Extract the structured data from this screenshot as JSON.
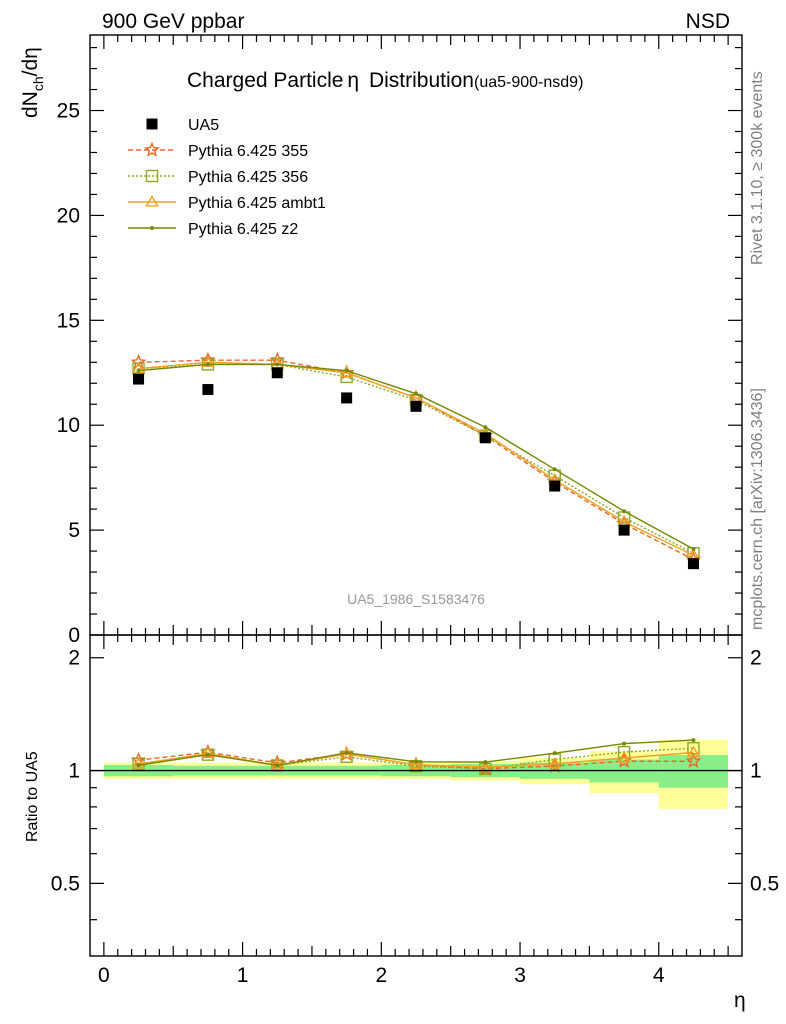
{
  "header": {
    "left": "900 GeV ppbar",
    "right": "NSD",
    "title_main": "Charged Particle",
    "title_eta": "η",
    "title_rest": " Distribution",
    "title_id": "(ua5-900-nsd9)",
    "side_top": "Rivet 3.1.10, ≥ 300k events",
    "side_bottom": "mcplots.cern.ch [arXiv:1306.3436]",
    "analysis": "UA5_1986_S1583476",
    "ratio_ylabel": "Ratio to UA5",
    "xlabel": "η"
  },
  "chart_data": {
    "type": "scatter",
    "x": [
      0.25,
      0.75,
      1.25,
      1.75,
      2.25,
      2.75,
      3.25,
      3.75,
      4.25
    ],
    "x_edges": [
      0,
      0.5,
      1.0,
      1.5,
      2.0,
      2.5,
      3.0,
      3.5,
      4.0,
      4.5
    ],
    "xlim": [
      -0.1,
      4.6
    ],
    "ylim": [
      0,
      28.6
    ],
    "ratio_ylim": [
      0.32,
      2.3
    ],
    "x_ticks": [
      "0",
      "1",
      "2",
      "3",
      "4"
    ],
    "y_ticks": [
      "0",
      "5",
      "10",
      "15",
      "20",
      "25"
    ],
    "ratio_ticks": [
      "0.5",
      "1",
      "2"
    ],
    "ylabel_main": "dN",
    "ylabel_sub": "ch",
    "ylabel_rest": "/dη",
    "data": {
      "name": "UA5",
      "values": [
        12.2,
        11.7,
        12.5,
        11.3,
        10.9,
        9.4,
        7.1,
        5.0,
        3.4
      ],
      "band_inner": [
        0.035,
        0.03,
        0.03,
        0.03,
        0.035,
        0.04,
        0.05,
        0.07,
        0.1
      ],
      "band_outer": [
        0.05,
        0.05,
        0.05,
        0.05,
        0.05,
        0.06,
        0.08,
        0.13,
        0.21
      ]
    },
    "series": [
      {
        "name": "Pythia 6.425 355",
        "color": "#ee6622",
        "dash": "5,3",
        "marker": "star",
        "values": [
          13.0,
          13.1,
          13.1,
          12.5,
          11.3,
          9.5,
          7.3,
          5.3,
          3.6
        ]
      },
      {
        "name": "Pythia 6.425 356",
        "color": "#88aa22",
        "dash": "2,2",
        "marker": "square",
        "values": [
          12.7,
          12.9,
          12.9,
          12.3,
          11.2,
          9.5,
          7.6,
          5.6,
          3.9
        ]
      },
      {
        "name": "Pythia 6.425 ambt1",
        "color": "#f0a020",
        "dash": "",
        "marker": "triangle",
        "values": [
          12.7,
          13.0,
          12.9,
          12.5,
          11.3,
          9.6,
          7.4,
          5.4,
          3.8
        ]
      },
      {
        "name": "Pythia 6.425 z2",
        "color": "#778800",
        "dash": "",
        "marker": "dot",
        "values": [
          12.6,
          12.9,
          12.9,
          12.6,
          11.5,
          9.9,
          7.9,
          5.9,
          4.1
        ]
      }
    ]
  }
}
